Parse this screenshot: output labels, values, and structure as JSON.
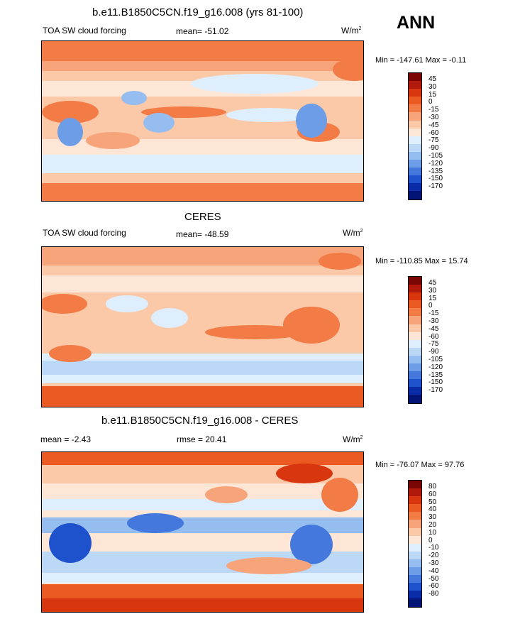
{
  "season": "ANN",
  "units": "W/m",
  "units_exp": "2",
  "panels": [
    {
      "title": "b.e11.B1850C5CN.f19_g16.008 (yrs 81-100)",
      "left_label": "TOA SW cloud forcing",
      "center_label": "mean= -51.02",
      "minmax": "Min = -147.61 Max =  -0.11",
      "levels": [
        "45",
        "30",
        "15",
        "0",
        "-15",
        "-30",
        "-45",
        "-60",
        "-75",
        "-90",
        "-105",
        "-120",
        "-135",
        "-150",
        "-170"
      ]
    },
    {
      "title": "CERES",
      "left_label": "TOA SW cloud forcing",
      "center_label": "mean= -48.59",
      "minmax": "Min = -110.85 Max =  15.74",
      "levels": [
        "45",
        "30",
        "15",
        "0",
        "-15",
        "-30",
        "-45",
        "-60",
        "-75",
        "-90",
        "-105",
        "-120",
        "-135",
        "-150",
        "-170"
      ]
    },
    {
      "title": "b.e11.B1850C5CN.f19_g16.008 - CERES",
      "left_label": "mean =  -2.43",
      "center_label": "rmse =  20.41",
      "minmax": "Min = -76.07 Max =  97.76",
      "levels": [
        "80",
        "60",
        "50",
        "40",
        "30",
        "20",
        "10",
        "0",
        "-10",
        "-20",
        "-30",
        "-40",
        "-50",
        "-60",
        "-80"
      ]
    }
  ],
  "colors": {
    "scale": [
      "#7a0505",
      "#b0190b",
      "#d8360f",
      "#ec5a23",
      "#f37b46",
      "#f8a47b",
      "#fbc8a8",
      "#fde6d6",
      "#dfeefc",
      "#bcd8f7",
      "#95bdf0",
      "#6d9de7",
      "#4478dc",
      "#1d52cc",
      "#0a2ca8",
      "#031477"
    ]
  }
}
